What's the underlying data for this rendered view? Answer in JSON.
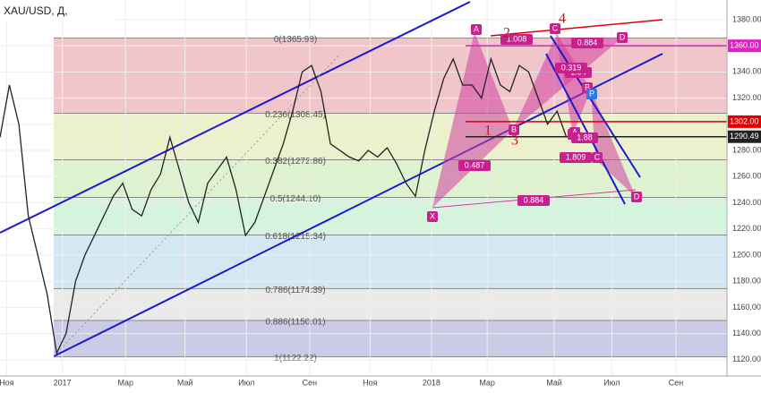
{
  "chart_data": {
    "type": "line",
    "title": "XAU/USD, Д,",
    "x": [
      0,
      1,
      2,
      3,
      4,
      5,
      6,
      7,
      8,
      9,
      10,
      11,
      12,
      13,
      14,
      15,
      16,
      17,
      18,
      19,
      20,
      21,
      22,
      23,
      24,
      25,
      26,
      27,
      28,
      29,
      30,
      31,
      32,
      33,
      34,
      35,
      36,
      37,
      38,
      39,
      40,
      41,
      42,
      43,
      44,
      45,
      46,
      47,
      48,
      49,
      50,
      51,
      52,
      53,
      54,
      55,
      56,
      57,
      58,
      59,
      60
    ],
    "series": [
      {
        "name": "XAU/USD",
        "color": "#222222",
        "values": [
          1290,
          1330,
          1300,
          1230,
          1200,
          1170,
          1125,
          1140,
          1180,
          1200,
          1215,
          1230,
          1245,
          1255,
          1235,
          1230,
          1250,
          1262,
          1290,
          1265,
          1240,
          1225,
          1255,
          1265,
          1275,
          1250,
          1215,
          1225,
          1245,
          1265,
          1285,
          1310,
          1340,
          1345,
          1325,
          1285,
          1280,
          1275,
          1272,
          1280,
          1275,
          1282,
          1270,
          1255,
          1245,
          1280,
          1310,
          1335,
          1350,
          1330,
          1330,
          1320,
          1350,
          1330,
          1325,
          1345,
          1340,
          1320,
          1300,
          1310,
          1290
        ]
      }
    ],
    "xlim": [
      0,
      77
    ],
    "xticks": [
      {
        "value": 0.7,
        "label": "Ноя"
      },
      {
        "value": 6.6,
        "label": "2017"
      },
      {
        "value": 13.3,
        "label": "Мар"
      },
      {
        "value": 19.6,
        "label": "Май"
      },
      {
        "value": 26.1,
        "label": "Июл"
      },
      {
        "value": 32.8,
        "label": "Сен"
      },
      {
        "value": 39.2,
        "label": "Ноя"
      },
      {
        "value": 45.7,
        "label": "2018"
      },
      {
        "value": 51.6,
        "label": "Мар"
      },
      {
        "value": 58.7,
        "label": "Май"
      },
      {
        "value": 64.8,
        "label": "Июл"
      },
      {
        "value": 71.6,
        "label": "Сен"
      }
    ],
    "ylim": [
      1098,
      1395
    ],
    "yticks": [
      {
        "value": 1120,
        "label": "1120.00"
      },
      {
        "value": 1140,
        "label": "1140.00"
      },
      {
        "value": 1160,
        "label": "1160.00"
      },
      {
        "value": 1180,
        "label": "1180.00"
      },
      {
        "value": 1200,
        "label": "1200.00"
      },
      {
        "value": 1220,
        "label": "1220.00"
      },
      {
        "value": 1240,
        "label": "1240.00"
      },
      {
        "value": 1260,
        "label": "1260.00"
      },
      {
        "value": 1280,
        "label": "1280.00"
      },
      {
        "value": 1300,
        "label": "1300.00"
      },
      {
        "value": 1320,
        "label": "1320.00"
      },
      {
        "value": 1340,
        "label": "1340.00"
      },
      {
        "value": 1360,
        "label": "1360.00"
      },
      {
        "value": 1380,
        "label": "1380.00"
      }
    ],
    "fib_levels": [
      {
        "value": 1365.98,
        "label": "0(1365.98)",
        "color": "#e8a0a8"
      },
      {
        "value": 1308.45,
        "label": "0.236(1308.45)",
        "color": "#dfe6a8"
      },
      {
        "value": 1272.86,
        "label": "0.382(1272.86)",
        "color": "#c8eab0"
      },
      {
        "value": 1244.1,
        "label": "0.5(1244.10)",
        "color": "#b8ecc8"
      },
      {
        "value": 1215.34,
        "label": "0.618(1215.34)",
        "color": "#b8d8ec"
      },
      {
        "value": 1174.39,
        "label": "0.786(1174.39)",
        "color": "#dcdcdc"
      },
      {
        "value": 1150.01,
        "label": "0.886(1150.01)",
        "color": "#a8a8d8"
      },
      {
        "value": 1122.22,
        "label": "1(1122.22)",
        "color": "#a8a8d8"
      }
    ],
    "price_labels": [
      {
        "value": 1360,
        "label": "1360.00",
        "color": "#e020c0"
      },
      {
        "value": 1302,
        "label": "1302.00",
        "color": "#e00000"
      },
      {
        "value": 1290.49,
        "label": "1290.49",
        "color": "#222222"
      }
    ],
    "annotations": [
      "A",
      "B",
      "X",
      "C",
      "D",
      "X",
      "A",
      "B",
      "C",
      "D",
      "P",
      "1.008",
      "0.884",
      "1.94",
      "0.487",
      "0.884",
      "1.809",
      "0.319",
      "1.88",
      "1",
      "2",
      "3",
      "4"
    ]
  }
}
